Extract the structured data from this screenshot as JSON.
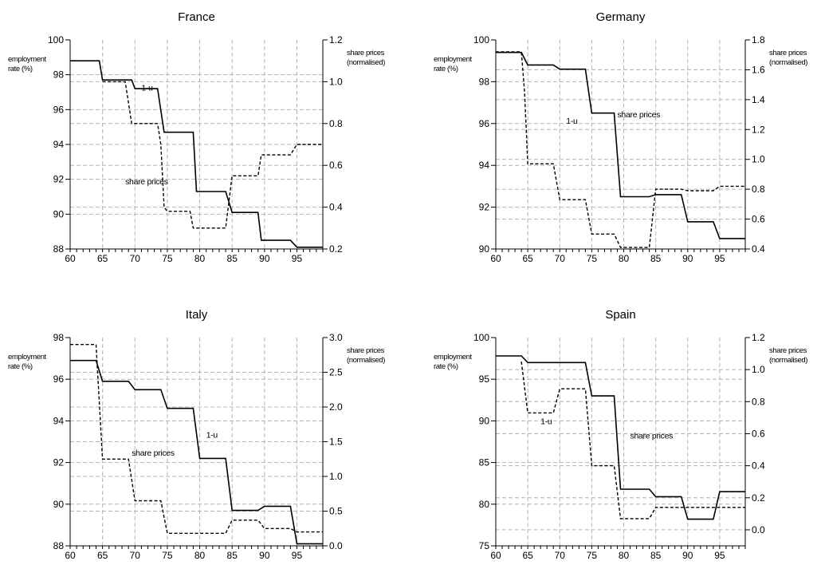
{
  "chart_data": [
    {
      "type": "line",
      "title": "France",
      "left_axis_label": [
        "employment",
        "rate (%)"
      ],
      "right_axis_label": [
        "share prices",
        "(normalised)"
      ],
      "xlim": [
        60,
        99
      ],
      "x_ticks": [
        60,
        65,
        70,
        75,
        80,
        85,
        90,
        95
      ],
      "ylim_left": [
        88,
        100
      ],
      "y_ticks_left": [
        88,
        90,
        92,
        94,
        96,
        98,
        100
      ],
      "ylim_right": [
        0.2,
        1.2
      ],
      "y_ticks_right": [
        0.2,
        0.4,
        0.6,
        0.8,
        1.0,
        1.2
      ],
      "series": [
        {
          "name": "1-u",
          "axis": "left",
          "style": "solid",
          "x": [
            60,
            64.5,
            65,
            69.5,
            70,
            73.5,
            74.5,
            79,
            79.5,
            84,
            85,
            89,
            89.5,
            94,
            95,
            99
          ],
          "y": [
            98.8,
            98.8,
            97.7,
            97.7,
            97.2,
            97.2,
            94.7,
            94.7,
            91.3,
            91.3,
            90.1,
            90.1,
            88.5,
            88.5,
            88.1,
            88.1
          ]
        },
        {
          "name": "share prices",
          "axis": "right",
          "style": "dashed",
          "x": [
            65,
            68.5,
            69.5,
            73.5,
            74,
            74.5,
            75,
            78.5,
            79,
            84,
            85,
            89,
            89.5,
            94,
            95,
            99
          ],
          "y": [
            1.0,
            1.0,
            0.8,
            0.8,
            0.7,
            0.4,
            0.38,
            0.38,
            0.3,
            0.3,
            0.55,
            0.55,
            0.65,
            0.65,
            0.7,
            0.7
          ]
        }
      ],
      "annotations": [
        "1-u",
        "share prices"
      ]
    },
    {
      "type": "line",
      "title": "Germany",
      "left_axis_label": [
        "employment",
        "rate (%)"
      ],
      "right_axis_label": [
        "share prices",
        "(normalised)"
      ],
      "xlim": [
        60,
        99
      ],
      "x_ticks": [
        60,
        65,
        70,
        75,
        80,
        85,
        90,
        95
      ],
      "ylim_left": [
        90,
        100
      ],
      "y_ticks_left": [
        90,
        92,
        94,
        96,
        98,
        100
      ],
      "ylim_right": [
        0.4,
        1.8
      ],
      "y_ticks_right": [
        0.4,
        0.6,
        0.8,
        1.0,
        1.2,
        1.4,
        1.6,
        1.8
      ],
      "series": [
        {
          "name": "1-u",
          "axis": "left",
          "style": "solid",
          "x": [
            60,
            64,
            65,
            69,
            70,
            74,
            75,
            78.5,
            79.5,
            84,
            85,
            89,
            90,
            94,
            95,
            99
          ],
          "y": [
            99.4,
            99.4,
            98.8,
            98.8,
            98.6,
            98.6,
            96.5,
            96.5,
            92.5,
            92.5,
            92.6,
            92.6,
            91.3,
            91.3,
            90.5,
            90.5
          ]
        },
        {
          "name": "share prices",
          "axis": "right",
          "style": "dashed",
          "x": [
            60,
            64,
            64.5,
            65,
            69,
            70,
            74,
            75,
            78.5,
            79.5,
            84,
            85,
            89,
            90,
            94,
            95,
            99
          ],
          "y": [
            1.72,
            1.72,
            1.45,
            0.97,
            0.97,
            0.73,
            0.73,
            0.5,
            0.5,
            0.41,
            0.41,
            0.8,
            0.8,
            0.79,
            0.79,
            0.82,
            0.82
          ]
        }
      ],
      "annotations": [
        "share prices",
        "1-u"
      ]
    },
    {
      "type": "line",
      "title": "Italy",
      "left_axis_label": [
        "employment",
        "rate (%)"
      ],
      "right_axis_label": [
        "share prices",
        "(normalised)"
      ],
      "xlim": [
        60,
        99
      ],
      "x_ticks": [
        60,
        65,
        70,
        75,
        80,
        85,
        90,
        95
      ],
      "ylim_left": [
        88,
        98
      ],
      "y_ticks_left": [
        88,
        90,
        92,
        94,
        96,
        98
      ],
      "ylim_right": [
        0.0,
        3.0
      ],
      "y_ticks_right": [
        0.0,
        0.5,
        1.0,
        1.5,
        2.0,
        2.5,
        3.0
      ],
      "series": [
        {
          "name": "1-u",
          "axis": "left",
          "style": "solid",
          "x": [
            60,
            64,
            65,
            69,
            70,
            74,
            75,
            79,
            80,
            84,
            85,
            89,
            90,
            94,
            95,
            99
          ],
          "y": [
            96.9,
            96.9,
            95.9,
            95.9,
            95.5,
            95.5,
            94.6,
            94.6,
            92.2,
            92.2,
            89.7,
            89.7,
            89.9,
            89.9,
            88.1,
            88.1
          ]
        },
        {
          "name": "share prices",
          "axis": "right",
          "style": "dashed",
          "x": [
            60,
            64,
            65,
            69,
            70,
            74,
            75,
            84,
            85,
            89,
            90,
            94,
            95,
            99
          ],
          "y": [
            2.9,
            2.9,
            1.25,
            1.25,
            0.65,
            0.65,
            0.18,
            0.18,
            0.37,
            0.37,
            0.25,
            0.25,
            0.2,
            0.2
          ]
        }
      ],
      "annotations": [
        "1-u",
        "share prices"
      ]
    },
    {
      "type": "line",
      "title": "Spain",
      "left_axis_label": [
        "employment",
        "rate (%)"
      ],
      "right_axis_label": [
        "share prices",
        "(normalised)"
      ],
      "xlim": [
        60,
        99
      ],
      "x_ticks": [
        60,
        65,
        70,
        75,
        80,
        85,
        90,
        95
      ],
      "ylim_left": [
        75,
        100
      ],
      "y_ticks_left": [
        75,
        80,
        85,
        90,
        95,
        100
      ],
      "ylim_right": [
        -0.1,
        1.2
      ],
      "y_ticks_right": [
        0.0,
        0.2,
        0.4,
        0.6,
        0.8,
        1.0,
        1.2
      ],
      "series": [
        {
          "name": "1-u",
          "axis": "left",
          "style": "solid",
          "x": [
            60,
            64,
            65,
            74,
            75,
            78.5,
            79.5,
            84,
            85,
            89,
            90,
            94,
            95,
            99
          ],
          "y": [
            97.8,
            97.8,
            97,
            97,
            93,
            93,
            81.8,
            81.8,
            80.9,
            80.9,
            78.2,
            78.2,
            81.5,
            81.5
          ]
        },
        {
          "name": "share prices",
          "axis": "right",
          "style": "dashed",
          "x": [
            64,
            65,
            69,
            70,
            74,
            75,
            78.5,
            79.5,
            84,
            85,
            99
          ],
          "y": [
            1.05,
            0.73,
            0.73,
            0.88,
            0.88,
            0.4,
            0.4,
            0.07,
            0.07,
            0.14,
            0.14
          ]
        }
      ],
      "annotations": [
        "1-u",
        "share prices"
      ]
    }
  ]
}
